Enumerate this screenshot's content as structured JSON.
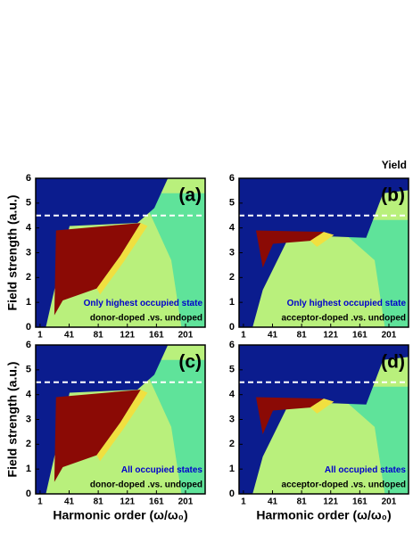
{
  "chart_data": [
    {
      "type": "heatmap",
      "panel_label": "(a)",
      "annotations": [
        "Only highest occupied state",
        "donor-doped .vs. undoped"
      ],
      "xlim": [
        -5,
        228
      ],
      "xticks": [
        1,
        41,
        81,
        121,
        161,
        201
      ],
      "ylim": [
        0,
        6
      ],
      "yticks": [
        0,
        1,
        2,
        3,
        4,
        5,
        6
      ],
      "ylabel": "Field strength (a.u.)",
      "hline": 4.5
    },
    {
      "type": "heatmap",
      "panel_label": "(b)",
      "corner_label": "Yield",
      "annotations": [
        "Only highest occupied state",
        "acceptor-doped .vs. undoped"
      ],
      "xlim": [
        -5,
        228
      ],
      "xticks": [
        1,
        41,
        81,
        121,
        161,
        201
      ],
      "ylim": [
        0,
        6
      ],
      "yticks": [
        0,
        1,
        2,
        3,
        4,
        5,
        6
      ],
      "hline": 4.5
    },
    {
      "type": "heatmap",
      "panel_label": "(c)",
      "annotations": [
        "All occupied states",
        "donor-doped .vs. undoped"
      ],
      "xlim": [
        -5,
        228
      ],
      "xticks": [
        1,
        41,
        81,
        121,
        161,
        201
      ],
      "ylim": [
        0,
        6
      ],
      "yticks": [
        0,
        1,
        2,
        3,
        4,
        5,
        6
      ],
      "xlabel": "Harmonic order  (ω/ω₀)",
      "ylabel": "Field strength (a.u.)",
      "hline": 4.5
    },
    {
      "type": "heatmap",
      "panel_label": "(d)",
      "annotations": [
        "All occupied states",
        "acceptor-doped .vs. undoped"
      ],
      "xlim": [
        -5,
        228
      ],
      "xticks": [
        1,
        41,
        81,
        121,
        161,
        201
      ],
      "ylim": [
        0,
        6
      ],
      "yticks": [
        0,
        1,
        2,
        3,
        4,
        5,
        6
      ],
      "xlabel": "Harmonic order  (ω/ω₀)",
      "hline": 4.5
    }
  ]
}
